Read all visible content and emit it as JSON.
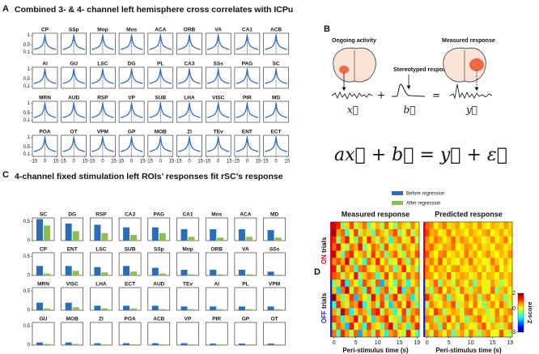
{
  "panel_a": {
    "letter": "A",
    "title": "Combined 3- & 4- channel left hemisphere cross correlates with ICPu",
    "regions": [
      "CP",
      "SSp",
      "Mop",
      "Mos",
      "ACA",
      "ORB",
      "VA",
      "CA1",
      "ACB",
      "AI",
      "GU",
      "LSC",
      "DG",
      "PL",
      "CA3",
      "SSs",
      "PAG",
      "SC",
      "MRN",
      "AUD",
      "RSP",
      "VP",
      "SUB",
      "LHA",
      "VISC",
      "PIR",
      "MD",
      "POA",
      "OT",
      "VPM",
      "GP",
      "MOB",
      "ZI",
      "TEv",
      "ENT",
      "ECT"
    ],
    "curve": {
      "x": [
        -15,
        -12,
        -9,
        -6,
        -4,
        -2,
        -1,
        0,
        1,
        2,
        4,
        6,
        9,
        12,
        15
      ],
      "y": [
        0.25,
        0.28,
        0.32,
        0.38,
        0.45,
        0.6,
        0.75,
        1,
        0.75,
        0.6,
        0.45,
        0.38,
        0.32,
        0.28,
        0.25
      ]
    },
    "xlim": [
      -17,
      17
    ],
    "ylim": [
      0,
      1.1
    ],
    "xticks": [
      -15,
      0,
      15
    ],
    "yticks": [
      0.1,
      0.5,
      1
    ],
    "color": "#2e6db4"
  },
  "panel_b": {
    "letter": "B",
    "ongoing": "Ongoing activity",
    "measured": "Measured response",
    "stereotyped": "Stereotyped response",
    "x_sym": "x⃗",
    "b_sym": "b⃗",
    "y_sym": "y⃗",
    "plus": "+",
    "equals": "=",
    "equation": "ax⃗ + b⃗ = y⃗ + ε⃗"
  },
  "panel_c": {
    "letter": "C",
    "title": "4-channel fixed stimulation left ROIs’ responses fit rSC’s response",
    "regions": [
      "SC",
      "DG",
      "RSP",
      "CA3",
      "PAG",
      "CA1",
      "Mos",
      "ACA",
      "MD",
      "CP",
      "ENT",
      "LSC",
      "SUB",
      "SSp",
      "Mop",
      "ORB",
      "VA",
      "SSs",
      "MRN",
      "VISC",
      "LHA",
      "ECT",
      "AUD",
      "TEv",
      "AI",
      "PL",
      "VPM",
      "GU",
      "MOB",
      "ZI",
      "POA",
      "ACB",
      "VP",
      "PIR",
      "GP",
      "OT"
    ],
    "ylim": [
      0,
      0.6
    ],
    "yticks": [
      0,
      0.5
    ],
    "series": [
      {
        "name": "Before regression",
        "color": "#2a6fb5",
        "values": [
          0.57,
          0.45,
          0.42,
          0.35,
          0.35,
          0.3,
          0.3,
          0.3,
          0.28,
          0.25,
          0.25,
          0.22,
          0.25,
          0.2,
          0.15,
          0.15,
          0.15,
          0.1,
          0.2,
          0.2,
          0.12,
          0.12,
          0.12,
          0.1,
          0.1,
          0.1,
          0.1,
          0.07,
          0.07,
          0.05,
          0.05,
          0.05,
          0.05,
          0.04,
          0.04,
          0.04
        ]
      },
      {
        "name": "After regression",
        "color": "#8cbf4f",
        "values": [
          0.4,
          0.25,
          0.2,
          0.15,
          0.2,
          0.1,
          0.08,
          0.1,
          0.08,
          0.05,
          0.12,
          0.08,
          0.1,
          0.05,
          0.03,
          0.03,
          0.03,
          0.02,
          0.05,
          0.08,
          0.05,
          0.05,
          0.03,
          0.03,
          0.03,
          0.03,
          0.03,
          0.03,
          0.03,
          0.02,
          0.02,
          0.02,
          0.02,
          0.02,
          0.02,
          0.02
        ]
      }
    ]
  },
  "panel_d": {
    "letter": "D",
    "x": [
      0,
      1,
      2,
      3,
      4,
      5,
      6,
      7,
      8,
      9,
      10,
      11,
      12,
      13,
      14,
      15,
      16,
      17,
      18,
      19
    ],
    "xlim": [
      -0.5,
      19.5
    ],
    "xticks": [
      0,
      5,
      10,
      15,
      19
    ],
    "xlabel": "Peri-stimulus time (s)",
    "on_label": "ON",
    "off_label": "OFF",
    "trials_label": "trials",
    "on_color": "#e0001b",
    "off_color": "#1d27c9",
    "colorbar": {
      "label": "Z-score",
      "clim": [
        -3,
        2
      ],
      "ticks": [
        -3,
        0,
        2
      ]
    },
    "heatmaps": [
      {
        "title": "Measured response",
        "on_values": [
          [
            1.5,
            1.2,
            -0.5,
            0.3,
            1.0,
            -0.2,
            0.4,
            0.8,
            -0.6,
            0.2,
            0.5,
            -0.3,
            0.9,
            0.1,
            -0.4,
            0.6,
            0.3,
            -0.1,
            0.7,
            0.2
          ],
          [
            1.8,
            0.6,
            0.9,
            -0.8,
            0.2,
            1.1,
            -0.3,
            0.5,
            0.3,
            -0.7,
            0.8,
            0.4,
            -0.2,
            0.6,
            1.0,
            -0.5,
            0.2,
            0.9,
            -0.3,
            0.4
          ],
          [
            1.2,
            -0.4,
            0.7,
            1.3,
            0.1,
            -0.6,
            0.9,
            0.2,
            1.2,
            0.4,
            -0.2,
            0.7,
            0.3,
            -0.9,
            0.5,
            0.8,
            -0.1,
            0.3,
            1.1,
            -0.2
          ],
          [
            0.9,
            1.4,
            0.2,
            -0.3,
            0.8,
            0.5,
            1.3,
            -0.5,
            0.1,
            0.9,
            0.6,
            -0.4,
            1.0,
            0.2,
            0.4,
            -0.3,
            0.8,
            0.5,
            0.0,
            0.6
          ],
          [
            1.6,
            0.3,
            -0.7,
            0.9,
            1.2,
            0.0,
            0.4,
            0.7,
            -0.2,
            1.1,
            0.3,
            0.8,
            -0.6,
            0.5,
            0.9,
            0.2,
            -0.4,
            0.7,
            0.3,
            1.0
          ],
          [
            0.7,
            1.0,
            0.5,
            1.5,
            -0.4,
            0.6,
            0.2,
            -0.8,
            0.9,
            0.3,
            1.2,
            0.1,
            0.6,
            -0.3,
            0.2,
            1.1,
            0.4,
            -0.5,
            0.8,
            0.1
          ],
          [
            1.3,
            -0.2,
            1.1,
            0.4,
            0.7,
            -0.9,
            0.8,
            1.0,
            0.3,
            -0.1,
            0.5,
            0.9,
            0.2,
            0.7,
            -0.6,
            0.4,
            1.2,
            0.0,
            0.5,
            -0.4
          ],
          [
            1.0,
            0.8,
            -0.3,
            0.6,
            0.2,
            1.3,
            -0.5,
            0.4,
            0.9,
            0.6,
            -0.8,
            0.3,
            1.1,
            0.0,
            0.7,
            0.5,
            -0.2,
            0.9,
            0.4,
            0.8
          ]
        ],
        "off_values": [
          [
            -0.5,
            0.3,
            1.4,
            -1.2,
            0.6,
            0.2,
            -0.8,
            1.0,
            0.4,
            -0.3,
            0.9,
            -1.5,
            0.5,
            0.1,
            -0.6,
            0.8,
            0.3,
            -1.0,
            0.2,
            0.6
          ],
          [
            0.4,
            -1.3,
            0.8,
            1.6,
            -0.2,
            0.9,
            0.5,
            -0.7,
            1.2,
            0.3,
            -0.9,
            0.6,
            1.0,
            -0.4,
            0.2,
            1.3,
            -1.1,
            0.5,
            0.8,
            -0.3
          ],
          [
            1.9,
            0.5,
            -0.6,
            0.3,
            1.1,
            -1.4,
            0.7,
            0.2,
            -0.5,
            1.4,
            0.4,
            0.9,
            -0.8,
            0.6,
            1.2,
            -0.2,
            0.4,
            0.7,
            -1.2,
            0.3
          ],
          [
            -0.9,
            1.2,
            0.4,
            -0.2,
            0.8,
            0.6,
            1.5,
            -1.0,
            0.3,
            0.7,
            -0.4,
            1.1,
            0.2,
            -1.3,
            0.5,
            0.9,
            0.0,
            1.2,
            0.4,
            -0.6
          ],
          [
            0.6,
            -0.4,
            1.7,
            0.9,
            -1.1,
            0.3,
            0.8,
            0.5,
            -0.6,
            1.0,
            1.3,
            -0.3,
            0.7,
            0.4,
            -0.9,
            0.2,
            1.1,
            -0.5,
            0.6,
            0.9
          ],
          [
            1.1,
            0.7,
            -1.0,
            0.4,
            0.6,
            1.4,
            -0.3,
            0.9,
            0.2,
            -1.2,
            0.5,
            0.8,
            1.2,
            -0.1,
            0.3,
            -0.7,
            0.9,
            0.4,
            1.0,
            0.2
          ],
          [
            -0.3,
            0.9,
            0.5,
            -1.4,
            1.3,
            0.1,
            0.6,
            -0.9,
            1.1,
            0.4,
            0.2,
            -0.6,
            0.8,
            1.5,
            -0.4,
            0.6,
            0.3,
            -0.8,
            0.5,
            1.2
          ],
          [
            0.8,
            -0.8,
            1.2,
            0.6,
            -0.2,
            0.9,
            -1.5,
            0.4,
            0.7,
            -0.5,
            1.0,
            0.3,
            -1.1,
            0.6,
            0.9,
            0.1,
            -0.3,
            1.3,
            0.2,
            -0.7
          ]
        ]
      },
      {
        "title": "Predicted response",
        "on_values": [
          [
            0.9,
            0.7,
            0.2,
            0.5,
            0.8,
            0.3,
            0.4,
            0.6,
            0.1,
            0.4,
            0.5,
            0.2,
            0.7,
            0.3,
            0.1,
            0.5,
            0.4,
            0.2,
            0.6,
            0.3
          ],
          [
            1.1,
            0.5,
            0.6,
            0.0,
            0.3,
            0.8,
            0.2,
            0.5,
            0.4,
            0.1,
            0.6,
            0.4,
            0.2,
            0.5,
            0.7,
            0.1,
            0.3,
            0.6,
            0.2,
            0.4
          ],
          [
            0.7,
            0.3,
            0.8,
            0.6,
            0.2,
            0.4,
            0.9,
            0.3,
            0.7,
            0.5,
            0.2,
            0.6,
            0.4,
            0.0,
            0.3,
            0.7,
            0.2,
            0.4,
            0.8,
            0.1
          ],
          [
            0.6,
            0.9,
            0.4,
            0.2,
            0.6,
            0.5,
            0.8,
            0.1,
            0.3,
            0.7,
            0.5,
            0.2,
            0.6,
            0.3,
            0.4,
            0.1,
            0.6,
            0.5,
            0.2,
            0.4
          ],
          [
            1.0,
            0.4,
            0.1,
            0.7,
            0.8,
            0.2,
            0.3,
            0.5,
            0.2,
            0.8,
            0.3,
            0.6,
            0.1,
            0.4,
            0.7,
            0.3,
            0.1,
            0.5,
            0.3,
            0.7
          ],
          [
            0.5,
            0.8,
            0.3,
            1.0,
            0.1,
            0.5,
            0.2,
            0.0,
            0.6,
            0.3,
            0.9,
            0.2,
            0.4,
            0.1,
            0.2,
            0.8,
            0.4,
            0.0,
            0.6,
            0.2
          ],
          [
            0.8,
            0.2,
            0.7,
            0.4,
            0.5,
            0.0,
            0.6,
            0.7,
            0.3,
            0.2,
            0.4,
            0.6,
            0.2,
            0.5,
            0.0,
            0.4,
            0.8,
            0.1,
            0.4,
            0.0
          ],
          [
            0.7,
            0.6,
            0.1,
            0.5,
            0.3,
            0.9,
            0.0,
            0.4,
            0.6,
            0.5,
            0.0,
            0.3,
            0.7,
            0.1,
            0.5,
            0.4,
            0.1,
            0.6,
            0.3,
            0.5
          ]
        ],
        "off_values": [
          [
            0.1,
            0.4,
            0.9,
            -0.5,
            0.5,
            0.3,
            -0.2,
            0.7,
            0.4,
            0.0,
            0.6,
            -0.6,
            0.4,
            0.2,
            -0.1,
            0.6,
            0.3,
            -0.4,
            0.2,
            0.5
          ],
          [
            0.4,
            -0.5,
            0.6,
            1.0,
            0.1,
            0.7,
            0.4,
            -0.2,
            0.8,
            0.3,
            -0.3,
            0.5,
            0.7,
            0.0,
            0.2,
            0.9,
            -0.4,
            0.4,
            0.6,
            0.0
          ],
          [
            1.2,
            0.5,
            -0.1,
            0.3,
            0.8,
            -0.6,
            0.5,
            0.2,
            0.0,
            0.9,
            0.4,
            0.7,
            -0.3,
            0.5,
            0.8,
            0.1,
            0.4,
            0.5,
            -0.5,
            0.3
          ],
          [
            -0.3,
            0.8,
            0.4,
            0.1,
            0.6,
            0.5,
            1.0,
            -0.4,
            0.3,
            0.6,
            0.0,
            0.8,
            0.2,
            -0.5,
            0.4,
            0.7,
            0.1,
            0.9,
            0.4,
            -0.2
          ],
          [
            0.5,
            0.0,
            1.1,
            0.7,
            -0.4,
            0.3,
            0.6,
            0.4,
            -0.1,
            0.8,
            0.9,
            0.0,
            0.5,
            0.4,
            -0.3,
            0.2,
            0.8,
            -0.1,
            0.5,
            0.7
          ],
          [
            0.8,
            0.6,
            -0.4,
            0.4,
            0.5,
            1.0,
            0.0,
            0.7,
            0.2,
            -0.5,
            0.4,
            0.6,
            0.9,
            0.1,
            0.3,
            -0.2,
            0.7,
            0.4,
            0.8,
            0.2
          ],
          [
            0.0,
            0.7,
            0.5,
            -0.6,
            0.9,
            0.1,
            0.5,
            -0.3,
            0.8,
            0.4,
            0.2,
            -0.1,
            0.6,
            1.0,
            0.0,
            0.5,
            0.3,
            -0.3,
            0.4,
            0.9
          ],
          [
            0.6,
            -0.2,
            0.9,
            0.5,
            0.0,
            0.7,
            -0.7,
            0.4,
            0.6,
            -0.1,
            0.8,
            0.3,
            -0.4,
            0.5,
            0.7,
            0.1,
            0.0,
            1.0,
            0.2,
            -0.2
          ]
        ]
      }
    ]
  }
}
